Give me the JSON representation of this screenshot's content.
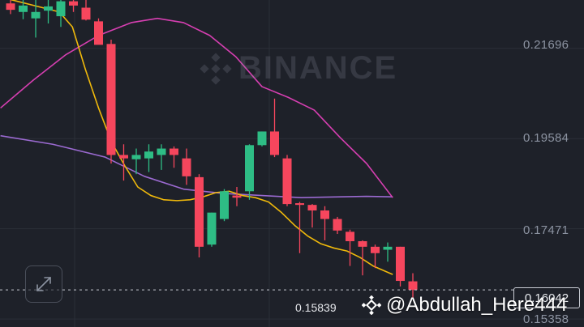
{
  "watermark": {
    "brand": "BINANCE",
    "user": "@Abdullah_Here444",
    "user_icon": "binance-logo-icon"
  },
  "price_axis": {
    "labels": [
      "0.21696",
      "0.19584",
      "0.17471",
      "0.15358"
    ],
    "current_price_label": "0.16042",
    "low_label": "0.15839"
  },
  "controls": {
    "expand_icon": "expand-arrows-icon"
  },
  "colors": {
    "background": "#1e2129",
    "up": "#2ebd85",
    "down": "#f6465d",
    "ma_short": "#f0b90b",
    "ma_mid": "#d63fb1",
    "ma_long": "#9b6ad1",
    "grid": "#2b2f38"
  },
  "chart_data": {
    "type": "candlestick",
    "y_axis_ticks": [
      0.21696,
      0.19584,
      0.17471,
      0.15358
    ],
    "ylim": [
      0.1517,
      0.2283
    ],
    "candles": [
      {
        "o": 0.2275,
        "h": 0.2283,
        "l": 0.225,
        "c": 0.226
      },
      {
        "o": 0.2255,
        "h": 0.2283,
        "l": 0.2238,
        "c": 0.227
      },
      {
        "o": 0.224,
        "h": 0.2283,
        "l": 0.2195,
        "c": 0.2255
      },
      {
        "o": 0.2258,
        "h": 0.2283,
        "l": 0.2228,
        "c": 0.2268
      },
      {
        "o": 0.2245,
        "h": 0.2283,
        "l": 0.222,
        "c": 0.228
      },
      {
        "o": 0.228,
        "h": 0.2283,
        "l": 0.2255,
        "c": 0.227
      },
      {
        "o": 0.2265,
        "h": 0.2283,
        "l": 0.2235,
        "c": 0.2237
      },
      {
        "o": 0.2233,
        "h": 0.224,
        "l": 0.218,
        "c": 0.2178
      },
      {
        "o": 0.218,
        "h": 0.219,
        "l": 0.19,
        "c": 0.192
      },
      {
        "o": 0.192,
        "h": 0.1945,
        "l": 0.186,
        "c": 0.1912
      },
      {
        "o": 0.191,
        "h": 0.1935,
        "l": 0.1875,
        "c": 0.192
      },
      {
        "o": 0.1912,
        "h": 0.1945,
        "l": 0.188,
        "c": 0.1928
      },
      {
        "o": 0.192,
        "h": 0.1945,
        "l": 0.1885,
        "c": 0.1935
      },
      {
        "o": 0.1935,
        "h": 0.194,
        "l": 0.189,
        "c": 0.192
      },
      {
        "o": 0.1912,
        "h": 0.1935,
        "l": 0.185,
        "c": 0.187
      },
      {
        "o": 0.1868,
        "h": 0.1875,
        "l": 0.168,
        "c": 0.1705
      },
      {
        "o": 0.171,
        "h": 0.1785,
        "l": 0.1705,
        "c": 0.1785
      },
      {
        "o": 0.177,
        "h": 0.184,
        "l": 0.1765,
        "c": 0.1835
      },
      {
        "o": 0.1825,
        "h": 0.1845,
        "l": 0.18,
        "c": 0.182
      },
      {
        "o": 0.1835,
        "h": 0.1945,
        "l": 0.1815,
        "c": 0.1943
      },
      {
        "o": 0.1943,
        "h": 0.1975,
        "l": 0.194,
        "c": 0.1975
      },
      {
        "o": 0.1975,
        "h": 0.2052,
        "l": 0.1915,
        "c": 0.192
      },
      {
        "o": 0.1912,
        "h": 0.192,
        "l": 0.18,
        "c": 0.1805
      },
      {
        "o": 0.1807,
        "h": 0.181,
        "l": 0.169,
        "c": 0.1803
      },
      {
        "o": 0.1803,
        "h": 0.1805,
        "l": 0.175,
        "c": 0.179
      },
      {
        "o": 0.179,
        "h": 0.18,
        "l": 0.172,
        "c": 0.177
      },
      {
        "o": 0.177,
        "h": 0.1775,
        "l": 0.1735,
        "c": 0.1743
      },
      {
        "o": 0.174,
        "h": 0.1745,
        "l": 0.166,
        "c": 0.1718
      },
      {
        "o": 0.1718,
        "h": 0.172,
        "l": 0.1638,
        "c": 0.1705
      },
      {
        "o": 0.1705,
        "h": 0.171,
        "l": 0.1655,
        "c": 0.169
      },
      {
        "o": 0.1698,
        "h": 0.1715,
        "l": 0.167,
        "c": 0.1705
      },
      {
        "o": 0.1705,
        "h": 0.1705,
        "l": 0.1612,
        "c": 0.1625
      },
      {
        "o": 0.1624,
        "h": 0.1643,
        "l": 0.1583,
        "c": 0.1604
      }
    ],
    "ma_short": [
      [
        0,
        0.229
      ],
      [
        9,
        0.2255
      ],
      [
        11,
        0.222
      ],
      [
        13,
        0.212
      ],
      [
        15,
        0.203
      ],
      [
        17,
        0.195
      ],
      [
        19,
        0.1895
      ],
      [
        21,
        0.1845
      ],
      [
        23,
        0.1825
      ],
      [
        25,
        0.1815
      ],
      [
        27,
        0.1813
      ],
      [
        29,
        0.1815
      ],
      [
        31,
        0.1822
      ],
      [
        33,
        0.1832
      ],
      [
        35,
        0.1835
      ],
      [
        37,
        0.1825
      ],
      [
        39,
        0.182
      ],
      [
        41,
        0.181
      ],
      [
        43,
        0.1785
      ],
      [
        45,
        0.1755
      ],
      [
        47,
        0.173
      ],
      [
        49,
        0.1712
      ],
      [
        51,
        0.1702
      ],
      [
        53,
        0.1695
      ],
      [
        55,
        0.168
      ],
      [
        57,
        0.166
      ],
      [
        60,
        0.164
      ]
    ],
    "ma_mid": [
      [
        0,
        0.203
      ],
      [
        5,
        0.2095
      ],
      [
        10,
        0.2155
      ],
      [
        15,
        0.22
      ],
      [
        20,
        0.223
      ],
      [
        24,
        0.224
      ],
      [
        28,
        0.223
      ],
      [
        32,
        0.22
      ],
      [
        36,
        0.215
      ],
      [
        40,
        0.208
      ],
      [
        44,
        0.2055
      ],
      [
        48,
        0.2025
      ],
      [
        52,
        0.196
      ],
      [
        56,
        0.19
      ],
      [
        60,
        0.182
      ]
    ],
    "ma_long": [
      [
        0,
        0.1965
      ],
      [
        8,
        0.1945
      ],
      [
        16,
        0.1915
      ],
      [
        22,
        0.187
      ],
      [
        28,
        0.184
      ],
      [
        34,
        0.183
      ],
      [
        40,
        0.1825
      ],
      [
        46,
        0.182
      ],
      [
        52,
        0.1822
      ],
      [
        56,
        0.1823
      ],
      [
        60,
        0.1822
      ]
    ]
  }
}
